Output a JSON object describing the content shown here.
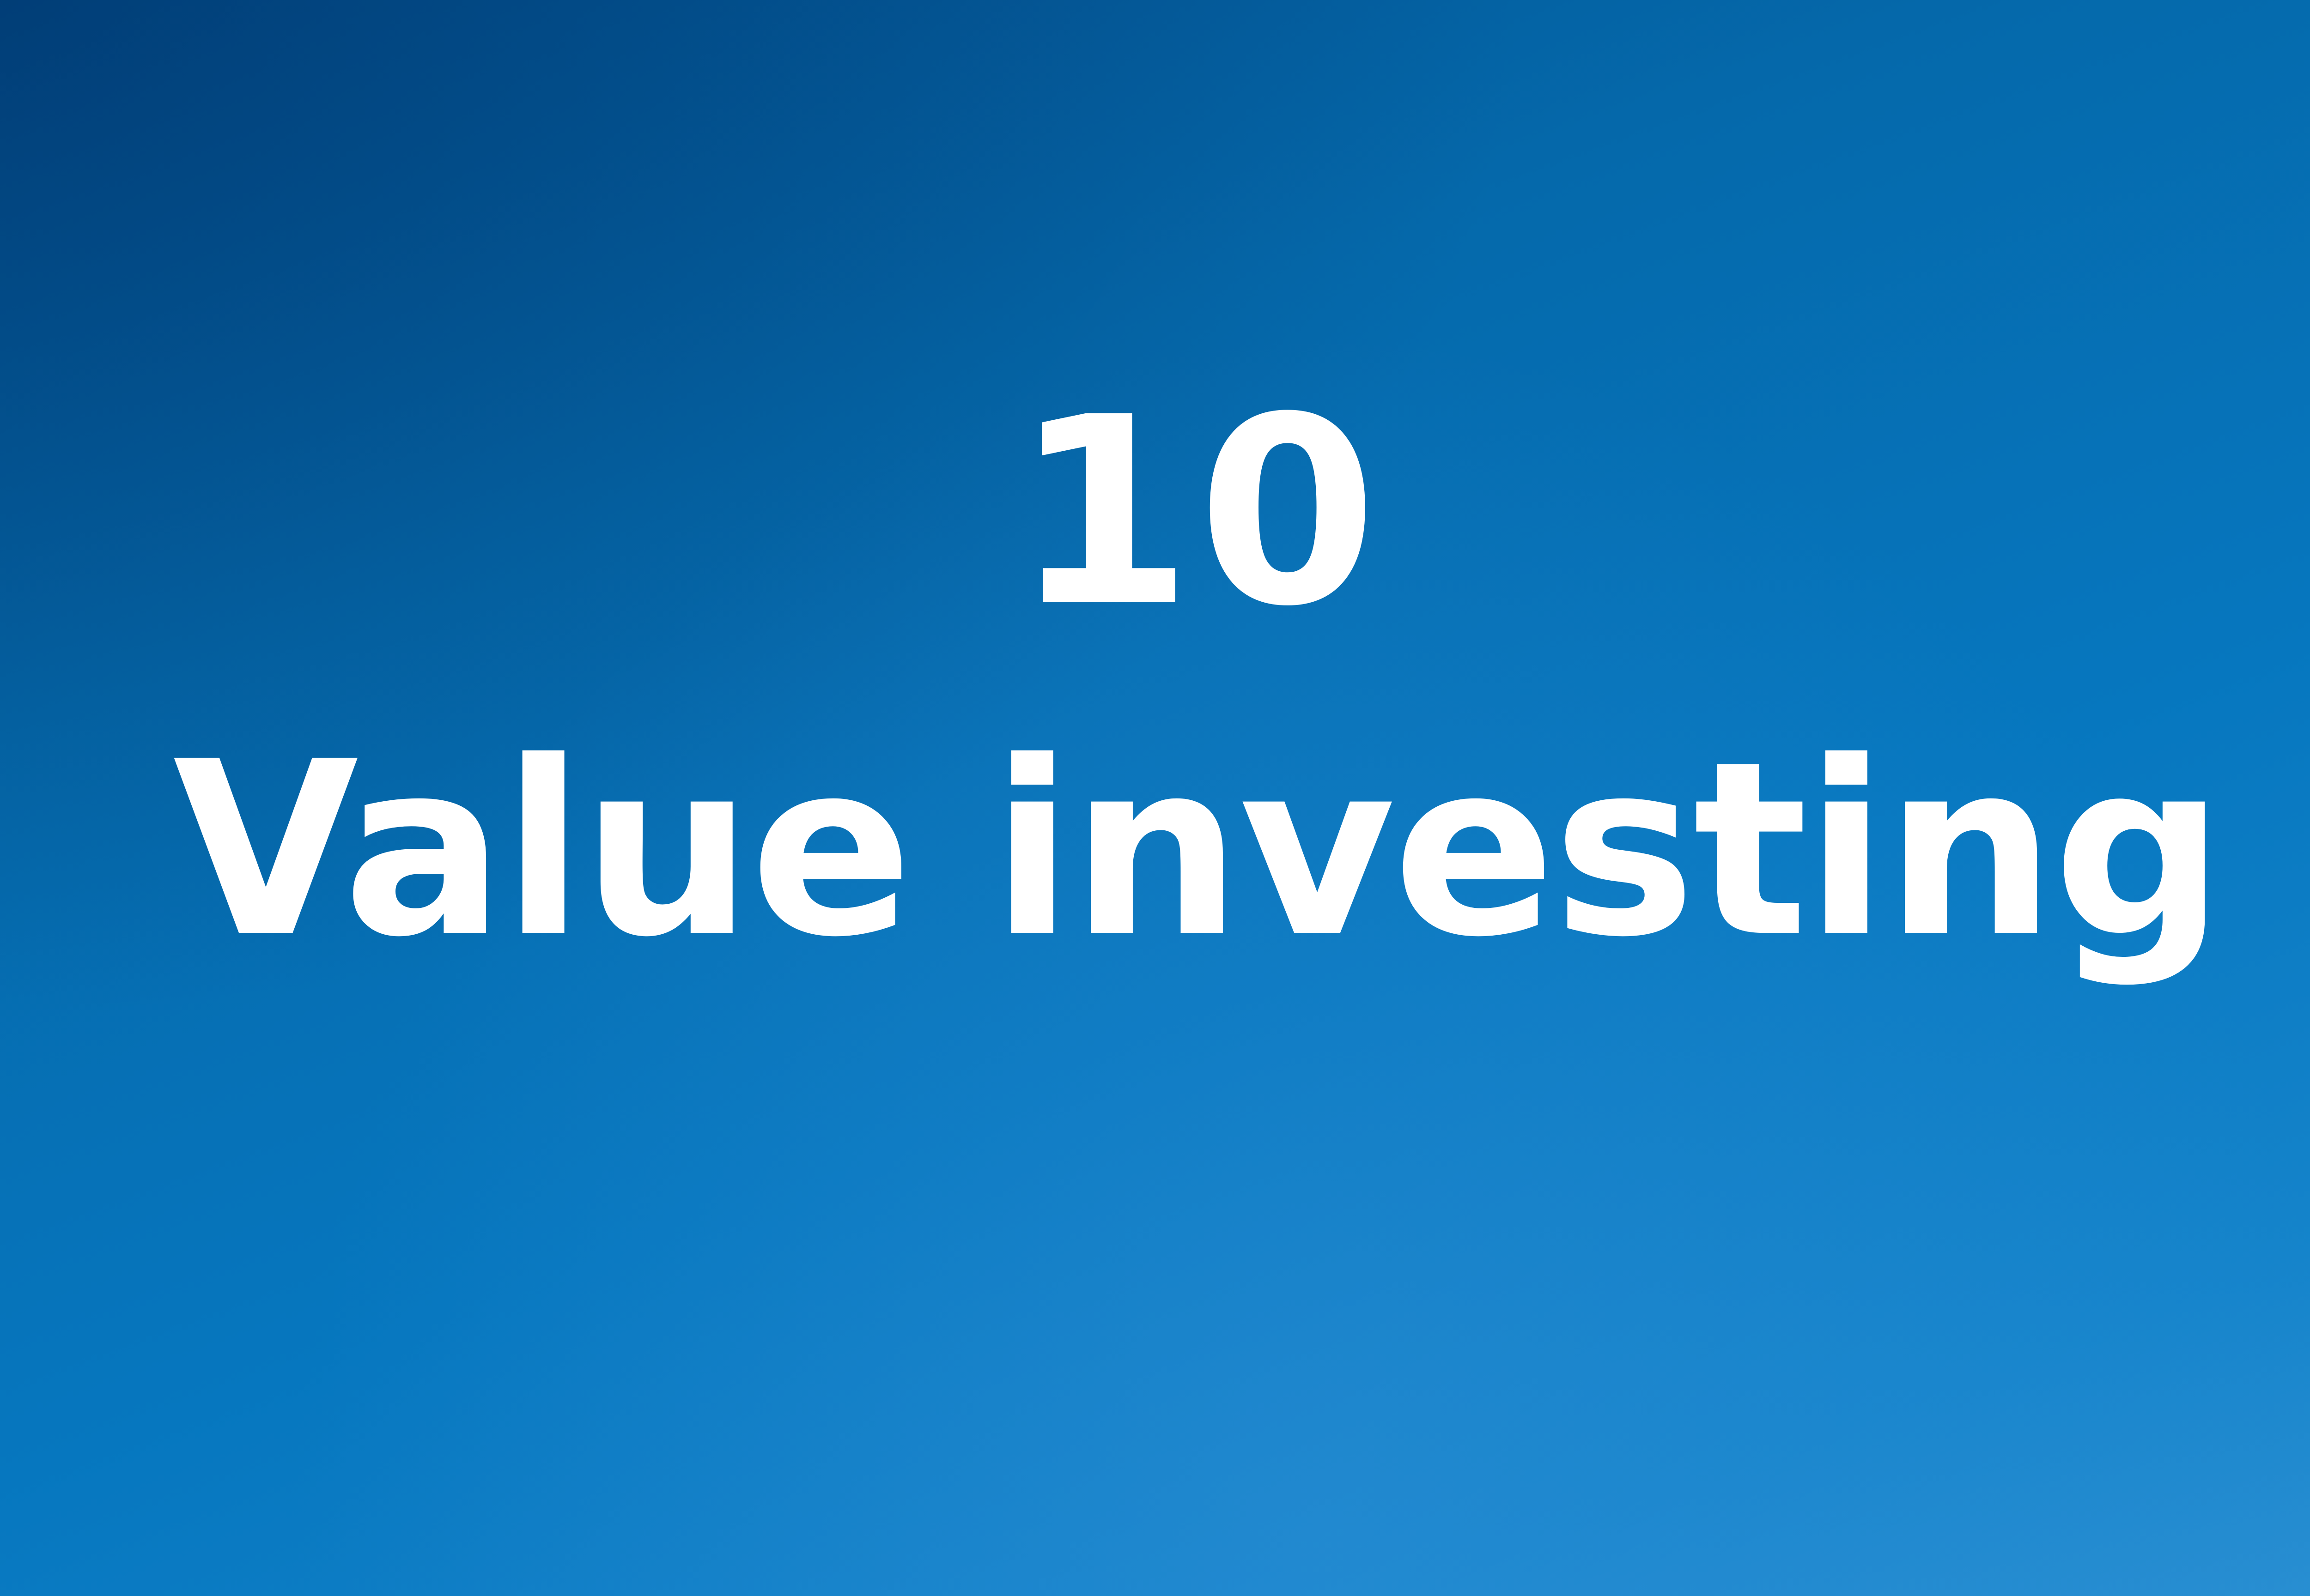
{
  "slide": {
    "number": "10",
    "title": "Value investing"
  },
  "colors": {
    "background_top": "#02508f",
    "background_bottom": "#2a8fd2",
    "text": "#ffffff"
  }
}
